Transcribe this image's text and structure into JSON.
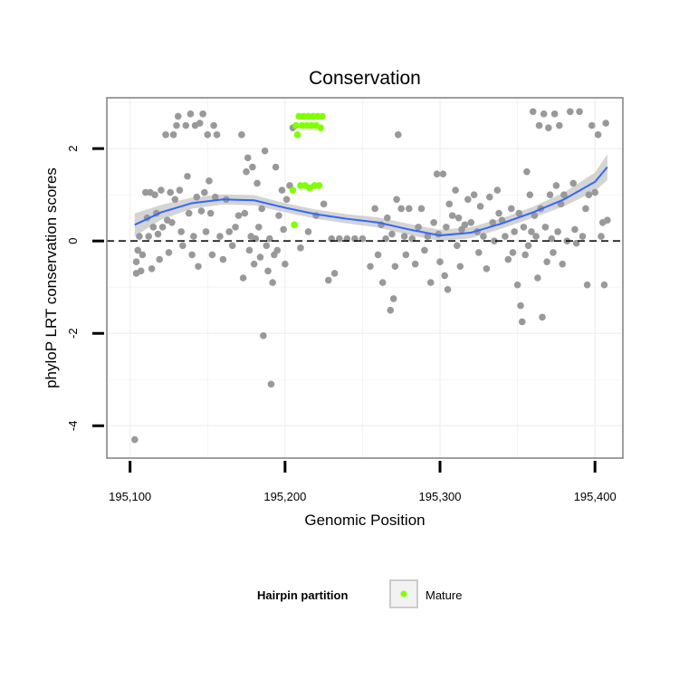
{
  "chart_data": {
    "type": "scatter",
    "title": "Conservation",
    "xlabel": "Genomic Position",
    "ylabel": "phyloP LRT conservation scores",
    "xlim": [
      195085,
      195418
    ],
    "ylim": [
      -4.7,
      3.1
    ],
    "x_ticks": [
      {
        "value": 195100,
        "label": "195,100"
      },
      {
        "value": 195200,
        "label": "195,200"
      },
      {
        "value": 195300,
        "label": "195,300"
      },
      {
        "value": 195400,
        "label": "195,400"
      }
    ],
    "y_ticks": [
      {
        "value": -4,
        "label": "-4"
      },
      {
        "value": -2,
        "label": "-2"
      },
      {
        "value": 0,
        "label": "0"
      },
      {
        "value": 2,
        "label": "2"
      }
    ],
    "grid": true,
    "reference_line": {
      "y": 0,
      "style": "dashed"
    },
    "colors": {
      "background_points": "#999999",
      "mature_points": "#7fff00",
      "smooth_line": "#3366ff",
      "ribbon": "#cccccc",
      "panel_border": "#7f7f7f",
      "grid": "#f2f2f2"
    },
    "legend": {
      "title": "Hairpin partition",
      "entries": [
        {
          "label": "Mature",
          "color": "#7fff00"
        }
      ],
      "position": "bottom"
    },
    "series": [
      {
        "name": "Other",
        "color": "#999999",
        "points": [
          [
            195103,
            -4.3
          ],
          [
            195104,
            -0.7
          ],
          [
            195104,
            -0.45
          ],
          [
            195105,
            -0.2
          ],
          [
            195106,
            0.1
          ],
          [
            195107,
            -0.65
          ],
          [
            195108,
            -0.3
          ],
          [
            195110,
            1.05
          ],
          [
            195111,
            0.5
          ],
          [
            195112,
            0.1
          ],
          [
            195113,
            1.05
          ],
          [
            195114,
            -0.6
          ],
          [
            195115,
            0.3
          ],
          [
            195116,
            1.0
          ],
          [
            195117,
            0.6
          ],
          [
            195118,
            0.15
          ],
          [
            195119,
            -0.4
          ],
          [
            195120,
            1.1
          ],
          [
            195121,
            0.3
          ],
          [
            195123,
            2.3
          ],
          [
            195124,
            0.45
          ],
          [
            195125,
            -0.25
          ],
          [
            195126,
            1.05
          ],
          [
            195127,
            0.4
          ],
          [
            195128,
            2.3
          ],
          [
            195129,
            0.9
          ],
          [
            195130,
            2.5
          ],
          [
            195131,
            2.7
          ],
          [
            195132,
            1.1
          ],
          [
            195133,
            0.2
          ],
          [
            195134,
            -0.1
          ],
          [
            195136,
            2.5
          ],
          [
            195137,
            1.4
          ],
          [
            195138,
            0.6
          ],
          [
            195139,
            2.75
          ],
          [
            195140,
            -0.3
          ],
          [
            195141,
            0.1
          ],
          [
            195142,
            2.5
          ],
          [
            195143,
            0.95
          ],
          [
            195144,
            -0.55
          ],
          [
            195145,
            2.55
          ],
          [
            195146,
            0.65
          ],
          [
            195147,
            2.75
          ],
          [
            195148,
            1.05
          ],
          [
            195149,
            0.2
          ],
          [
            195150,
            2.3
          ],
          [
            195151,
            1.3
          ],
          [
            195152,
            0.6
          ],
          [
            195153,
            -0.3
          ],
          [
            195154,
            2.5
          ],
          [
            195155,
            0.95
          ],
          [
            195156,
            2.3
          ],
          [
            195158,
            0.1
          ],
          [
            195160,
            -0.4
          ],
          [
            195162,
            0.9
          ],
          [
            195164,
            0.2
          ],
          [
            195166,
            -0.1
          ],
          [
            195168,
            0.3
          ],
          [
            195170,
            0.55
          ],
          [
            195172,
            2.3
          ],
          [
            195173,
            -0.8
          ],
          [
            195174,
            0.6
          ],
          [
            195175,
            1.5
          ],
          [
            195176,
            1.8
          ],
          [
            195177,
            -0.2
          ],
          [
            195178,
            0.1
          ],
          [
            195179,
            1.6
          ],
          [
            195180,
            -0.5
          ],
          [
            195181,
            0.05
          ],
          [
            195182,
            1.25
          ],
          [
            195183,
            0.3
          ],
          [
            195184,
            -0.35
          ],
          [
            195185,
            0.7
          ],
          [
            195186,
            -2.05
          ],
          [
            195187,
            1.95
          ],
          [
            195188,
            -0.1
          ],
          [
            195189,
            -0.65
          ],
          [
            195190,
            0.05
          ],
          [
            195191,
            -3.1
          ],
          [
            195192,
            -0.9
          ],
          [
            195193,
            -0.3
          ],
          [
            195194,
            1.6
          ],
          [
            195195,
            -0.2
          ],
          [
            195196,
            0.55
          ],
          [
            195198,
            1.1
          ],
          [
            195199,
            0.25
          ],
          [
            195200,
            -0.5
          ],
          [
            195201,
            0.9
          ],
          [
            195203,
            1.2
          ],
          [
            195205,
            2.45
          ],
          [
            195210,
            -0.15
          ],
          [
            195215,
            0.2
          ],
          [
            195220,
            0.55
          ],
          [
            195225,
            0.8
          ],
          [
            195228,
            -0.85
          ],
          [
            195230,
            0.05
          ],
          [
            195232,
            -0.7
          ],
          [
            195235,
            0.05
          ],
          [
            195240,
            0.05
          ],
          [
            195245,
            0.05
          ],
          [
            195250,
            0.05
          ],
          [
            195255,
            -0.55
          ],
          [
            195258,
            0.7
          ],
          [
            195260,
            -0.3
          ],
          [
            195262,
            0.35
          ],
          [
            195263,
            -0.9
          ],
          [
            195265,
            0.05
          ],
          [
            195266,
            0.5
          ],
          [
            195268,
            -1.5
          ],
          [
            195269,
            0.15
          ],
          [
            195270,
            -1.25
          ],
          [
            195271,
            -0.55
          ],
          [
            195272,
            0.9
          ],
          [
            195273,
            2.3
          ],
          [
            195275,
            0.7
          ],
          [
            195277,
            0.1
          ],
          [
            195278,
            -0.3
          ],
          [
            195280,
            0.7
          ],
          [
            195282,
            0.05
          ],
          [
            195284,
            -0.5
          ],
          [
            195286,
            0.3
          ],
          [
            195288,
            0.7
          ],
          [
            195290,
            -0.2
          ],
          [
            195292,
            0.1
          ],
          [
            195294,
            -0.9
          ],
          [
            195296,
            0.4
          ],
          [
            195298,
            1.45
          ],
          [
            195299,
            0.15
          ],
          [
            195300,
            -0.45
          ],
          [
            195302,
            1.45
          ],
          [
            195303,
            -0.75
          ],
          [
            195304,
            0.3
          ],
          [
            195305,
            -1.05
          ],
          [
            195306,
            0.8
          ],
          [
            195308,
            0.55
          ],
          [
            195310,
            1.1
          ],
          [
            195311,
            -0.1
          ],
          [
            195312,
            0.5
          ],
          [
            195313,
            -0.55
          ],
          [
            195314,
            0.25
          ],
          [
            195316,
            0.35
          ],
          [
            195318,
            0.9
          ],
          [
            195320,
            0.4
          ],
          [
            195322,
            1.0
          ],
          [
            195324,
            0.2
          ],
          [
            195325,
            -0.25
          ],
          [
            195326,
            0.75
          ],
          [
            195328,
            0.1
          ],
          [
            195330,
            -0.6
          ],
          [
            195332,
            0.95
          ],
          [
            195334,
            0.4
          ],
          [
            195335,
            0.0
          ],
          [
            195337,
            1.1
          ],
          [
            195338,
            0.6
          ],
          [
            195340,
            0.45
          ],
          [
            195342,
            0.1
          ],
          [
            195344,
            -0.4
          ],
          [
            195346,
            0.7
          ],
          [
            195347,
            -0.25
          ],
          [
            195348,
            0.2
          ],
          [
            195350,
            -0.95
          ],
          [
            195351,
            0.6
          ],
          [
            195352,
            -1.4
          ],
          [
            195353,
            -1.75
          ],
          [
            195354,
            0.3
          ],
          [
            195355,
            -0.3
          ],
          [
            195356,
            1.5
          ],
          [
            195357,
            -0.1
          ],
          [
            195358,
            1.0
          ],
          [
            195359,
            0.2
          ],
          [
            195360,
            2.8
          ],
          [
            195361,
            0.55
          ],
          [
            195362,
            0.1
          ],
          [
            195363,
            -0.8
          ],
          [
            195364,
            2.5
          ],
          [
            195365,
            0.7
          ],
          [
            195366,
            -1.65
          ],
          [
            195367,
            2.75
          ],
          [
            195368,
            0.3
          ],
          [
            195369,
            -0.45
          ],
          [
            195370,
            2.45
          ],
          [
            195371,
            1.0
          ],
          [
            195372,
            0.05
          ],
          [
            195373,
            -0.25
          ],
          [
            195374,
            2.75
          ],
          [
            195375,
            1.2
          ],
          [
            195376,
            0.2
          ],
          [
            195377,
            2.5
          ],
          [
            195378,
            0.8
          ],
          [
            195379,
            -0.5
          ],
          [
            195380,
            1.0
          ],
          [
            195382,
            0.0
          ],
          [
            195384,
            2.8
          ],
          [
            195386,
            1.25
          ],
          [
            195387,
            0.25
          ],
          [
            195388,
            -0.05
          ],
          [
            195390,
            2.8
          ],
          [
            195392,
            0.1
          ],
          [
            195394,
            0.7
          ],
          [
            195395,
            -0.95
          ],
          [
            195396,
            1.0
          ],
          [
            195398,
            2.5
          ],
          [
            195400,
            1.05
          ],
          [
            195402,
            2.3
          ],
          [
            195404,
            0.1
          ],
          [
            195405,
            0.4
          ],
          [
            195406,
            -0.95
          ],
          [
            195407,
            2.55
          ],
          [
            195408,
            0.45
          ]
        ]
      },
      {
        "name": "Mature",
        "color": "#7fff00",
        "points": [
          [
            195205,
            1.1
          ],
          [
            195206,
            0.35
          ],
          [
            195207,
            2.5
          ],
          [
            195208,
            2.3
          ],
          [
            195209,
            2.7
          ],
          [
            195210,
            1.2
          ],
          [
            195211,
            2.5
          ],
          [
            195212,
            2.7
          ],
          [
            195213,
            1.2
          ],
          [
            195214,
            2.5
          ],
          [
            195215,
            2.7
          ],
          [
            195216,
            1.15
          ],
          [
            195217,
            2.5
          ],
          [
            195218,
            2.7
          ],
          [
            195219,
            1.2
          ],
          [
            195220,
            2.5
          ],
          [
            195221,
            2.7
          ],
          [
            195222,
            1.2
          ],
          [
            195223,
            2.45
          ],
          [
            195224,
            2.7
          ]
        ]
      }
    ],
    "smooth": {
      "x": [
        195103,
        195120,
        195140,
        195160,
        195180,
        195200,
        195220,
        195240,
        195260,
        195280,
        195300,
        195320,
        195340,
        195360,
        195380,
        195400,
        195408
      ],
      "y": [
        0.35,
        0.62,
        0.82,
        0.9,
        0.88,
        0.72,
        0.58,
        0.48,
        0.4,
        0.25,
        0.12,
        0.18,
        0.38,
        0.62,
        0.9,
        1.28,
        1.6
      ],
      "se": [
        0.25,
        0.16,
        0.12,
        0.11,
        0.11,
        0.1,
        0.1,
        0.1,
        0.11,
        0.12,
        0.12,
        0.12,
        0.11,
        0.12,
        0.15,
        0.2,
        0.28
      ]
    }
  }
}
